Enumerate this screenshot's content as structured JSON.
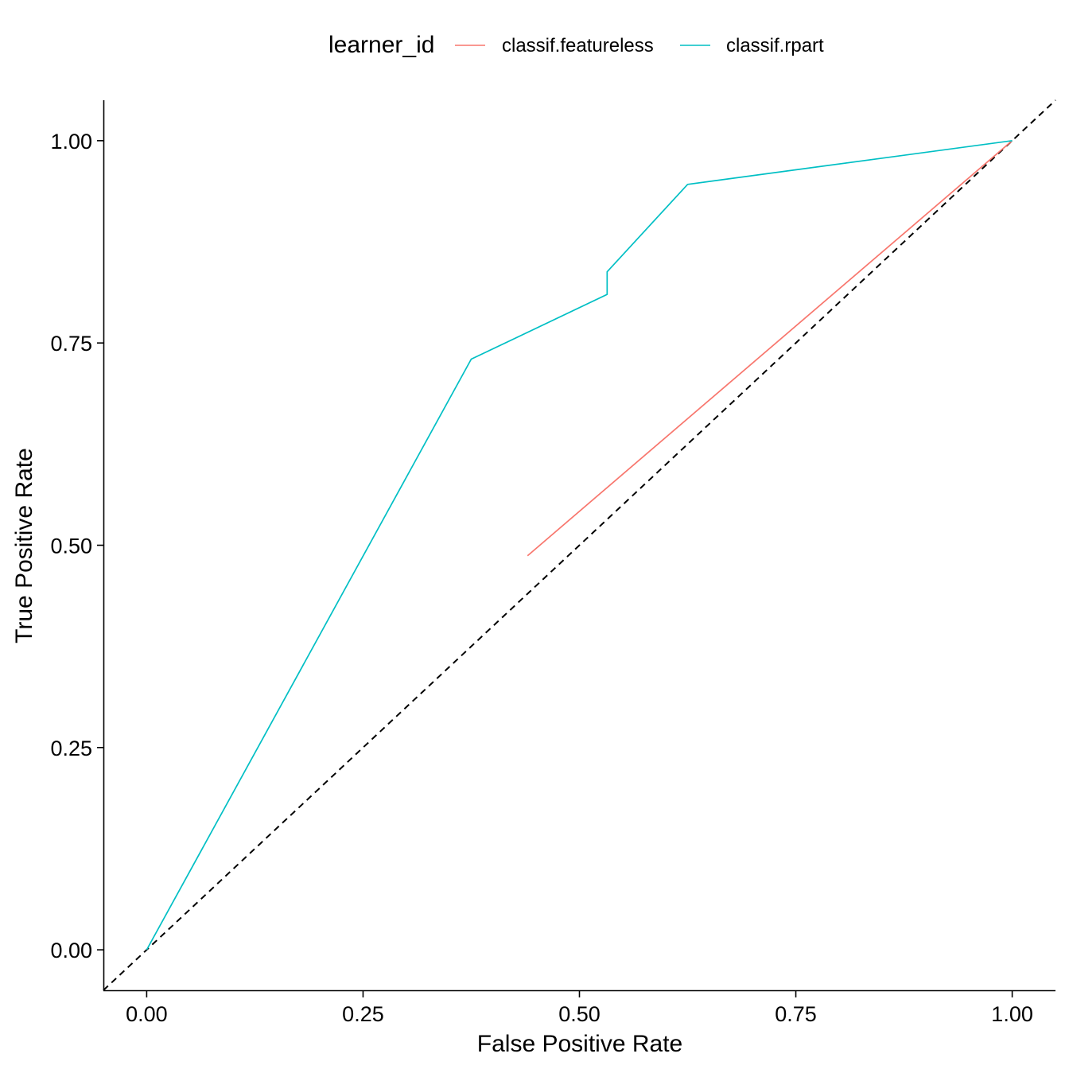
{
  "chart_data": {
    "type": "line",
    "title": "",
    "xlabel": "False Positive Rate",
    "ylabel": "True Positive Rate",
    "xlim": [
      -0.05,
      1.05
    ],
    "ylim": [
      -0.05,
      1.05
    ],
    "x_ticks": [
      "0.00",
      "0.25",
      "0.50",
      "0.75",
      "1.00"
    ],
    "y_ticks": [
      "0.00",
      "0.25",
      "0.50",
      "0.75",
      "1.00"
    ],
    "grid": false,
    "legend": {
      "title": "learner_id",
      "placement": "top"
    },
    "series": [
      {
        "name": "classif.featureless",
        "color": "#F8766D",
        "points": [
          {
            "x": 0.44,
            "y": 0.487
          },
          {
            "x": 1.0,
            "y": 1.0
          }
        ]
      },
      {
        "name": "classif.rpart",
        "color": "#00BFC4",
        "points": [
          {
            "x": 0.0,
            "y": 0.0
          },
          {
            "x": 0.375,
            "y": 0.73
          },
          {
            "x": 0.532,
            "y": 0.81
          },
          {
            "x": 0.532,
            "y": 0.838
          },
          {
            "x": 0.625,
            "y": 0.946
          },
          {
            "x": 1.0,
            "y": 1.0
          }
        ]
      }
    ],
    "reference_line": {
      "style": "dashed",
      "color": "#000000",
      "points": [
        {
          "x": -0.05,
          "y": -0.05
        },
        {
          "x": 1.05,
          "y": 1.05
        }
      ]
    }
  }
}
